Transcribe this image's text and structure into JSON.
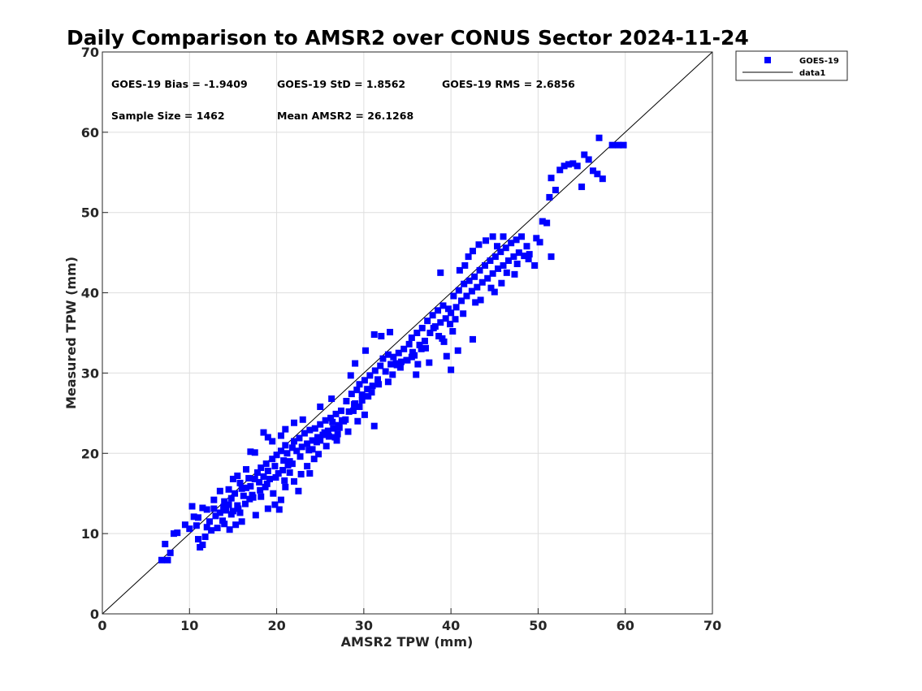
{
  "chart_data": {
    "type": "scatter",
    "title": "Daily Comparison to AMSR2 over CONUS Sector 2024-11-24",
    "xlabel": "AMSR2 TPW (mm)",
    "ylabel": "Measured TPW (mm)",
    "xlim": [
      0,
      70
    ],
    "ylim": [
      0,
      70
    ],
    "xticks": [
      0,
      10,
      20,
      30,
      40,
      50,
      60,
      70
    ],
    "yticks": [
      0,
      10,
      20,
      30,
      40,
      50,
      60,
      70
    ],
    "grid": true,
    "legend_position": "outside-top-right",
    "stats": [
      "GOES-19 Bias = -1.9409",
      "GOES-19 StD = 1.8562",
      "GOES-19 RMS = 2.6856",
      "Sample Size = 1462",
      "Mean AMSR2 = 26.1268"
    ],
    "marker_color": "#0000ff",
    "line_color": "#000000",
    "series": [
      {
        "name": "GOES-19",
        "kind": "scatter",
        "points": [
          [
            6.8,
            6.7
          ],
          [
            7.5,
            6.7
          ],
          [
            7.2,
            8.7
          ],
          [
            7.8,
            7.6
          ],
          [
            8.2,
            10.0
          ],
          [
            8.6,
            10.1
          ],
          [
            9.5,
            11.1
          ],
          [
            10.0,
            10.6
          ],
          [
            10.3,
            13.4
          ],
          [
            10.5,
            12.1
          ],
          [
            10.8,
            11.0
          ],
          [
            11.0,
            9.3
          ],
          [
            11.2,
            8.3
          ],
          [
            11.5,
            8.6
          ],
          [
            11.8,
            9.6
          ],
          [
            12.0,
            10.8
          ],
          [
            12.3,
            11.5
          ],
          [
            12.5,
            10.4
          ],
          [
            12.8,
            13.1
          ],
          [
            13.0,
            12.2
          ],
          [
            13.2,
            10.7
          ],
          [
            13.5,
            12.6
          ],
          [
            13.8,
            11.6
          ],
          [
            14.0,
            14.0
          ],
          [
            14.2,
            12.9
          ],
          [
            14.5,
            13.6
          ],
          [
            14.8,
            14.4
          ],
          [
            15.0,
            12.8
          ],
          [
            15.2,
            15.0
          ],
          [
            15.5,
            13.5
          ],
          [
            15.8,
            16.3
          ],
          [
            16.0,
            15.6
          ],
          [
            16.2,
            14.7
          ],
          [
            16.5,
            15.7
          ],
          [
            16.8,
            16.9
          ],
          [
            17.0,
            15.9
          ],
          [
            17.2,
            14.8
          ],
          [
            17.5,
            16.8
          ],
          [
            17.8,
            17.6
          ],
          [
            18.0,
            16.4
          ],
          [
            18.2,
            18.2
          ],
          [
            18.5,
            17.1
          ],
          [
            18.8,
            18.7
          ],
          [
            19.0,
            17.8
          ],
          [
            19.2,
            16.8
          ],
          [
            19.5,
            19.3
          ],
          [
            19.8,
            18.4
          ],
          [
            20.0,
            19.8
          ],
          [
            20.2,
            17.5
          ],
          [
            20.5,
            20.3
          ],
          [
            20.8,
            19.1
          ],
          [
            21.0,
            21.0
          ],
          [
            21.2,
            20.0
          ],
          [
            21.5,
            19.0
          ],
          [
            21.8,
            20.7
          ],
          [
            22.0,
            21.5
          ],
          [
            22.3,
            20.3
          ],
          [
            22.6,
            21.9
          ],
          [
            22.9,
            20.8
          ],
          [
            23.2,
            22.5
          ],
          [
            23.5,
            21.2
          ],
          [
            23.8,
            22.9
          ],
          [
            24.1,
            21.6
          ],
          [
            24.4,
            23.1
          ],
          [
            24.7,
            22.0
          ],
          [
            25.0,
            23.6
          ],
          [
            25.3,
            22.3
          ],
          [
            25.6,
            24.1
          ],
          [
            25.9,
            22.8
          ],
          [
            26.2,
            24.4
          ],
          [
            26.5,
            23.1
          ],
          [
            26.8,
            24.9
          ],
          [
            27.1,
            23.5
          ],
          [
            27.4,
            25.3
          ],
          [
            27.7,
            24.0
          ],
          [
            28.0,
            26.5
          ],
          [
            28.3,
            25.2
          ],
          [
            28.6,
            27.4
          ],
          [
            28.9,
            26.1
          ],
          [
            29.2,
            27.9
          ],
          [
            29.5,
            28.6
          ],
          [
            29.8,
            27.3
          ],
          [
            30.1,
            29.1
          ],
          [
            30.4,
            28.0
          ],
          [
            30.7,
            29.7
          ],
          [
            31.0,
            28.4
          ],
          [
            31.3,
            30.3
          ],
          [
            31.6,
            29.2
          ],
          [
            31.9,
            30.9
          ],
          [
            32.2,
            31.8
          ],
          [
            32.5,
            30.2
          ],
          [
            32.8,
            32.3
          ],
          [
            33.1,
            31.1
          ],
          [
            33.4,
            32.0
          ],
          [
            33.7,
            31.2
          ],
          [
            34.0,
            32.5
          ],
          [
            34.3,
            31.4
          ],
          [
            34.6,
            33.0
          ],
          [
            34.9,
            31.6
          ],
          [
            35.2,
            33.6
          ],
          [
            35.5,
            34.4
          ],
          [
            35.8,
            32.2
          ],
          [
            36.1,
            35.0
          ],
          [
            36.4,
            33.5
          ],
          [
            36.7,
            35.6
          ],
          [
            37.0,
            34.0
          ],
          [
            37.3,
            36.5
          ],
          [
            37.6,
            35.0
          ],
          [
            37.9,
            37.2
          ],
          [
            38.2,
            35.8
          ],
          [
            38.5,
            37.8
          ],
          [
            38.8,
            36.3
          ],
          [
            39.1,
            38.4
          ],
          [
            39.4,
            36.8
          ],
          [
            39.7,
            38.0
          ],
          [
            40.0,
            37.5
          ],
          [
            40.3,
            39.6
          ],
          [
            40.6,
            38.2
          ],
          [
            40.9,
            40.3
          ],
          [
            41.2,
            39.0
          ],
          [
            41.5,
            41.1
          ],
          [
            41.8,
            39.6
          ],
          [
            42.1,
            41.5
          ],
          [
            42.4,
            40.2
          ],
          [
            42.7,
            42.0
          ],
          [
            43.0,
            40.7
          ],
          [
            43.3,
            42.8
          ],
          [
            43.6,
            41.3
          ],
          [
            43.9,
            43.4
          ],
          [
            44.2,
            41.8
          ],
          [
            44.5,
            44.0
          ],
          [
            44.8,
            42.4
          ],
          [
            45.1,
            44.5
          ],
          [
            45.4,
            43.0
          ],
          [
            45.7,
            45.1
          ],
          [
            46.0,
            43.4
          ],
          [
            46.3,
            45.6
          ],
          [
            46.6,
            44.0
          ],
          [
            46.9,
            46.2
          ],
          [
            47.2,
            44.5
          ],
          [
            47.5,
            46.6
          ],
          [
            47.8,
            45.0
          ],
          [
            48.1,
            47.0
          ],
          [
            48.4,
            44.6
          ],
          [
            48.7,
            45.8
          ],
          [
            49.0,
            44.8
          ],
          [
            49.6,
            43.4
          ],
          [
            49.8,
            46.8
          ],
          [
            50.2,
            46.3
          ],
          [
            50.5,
            48.9
          ],
          [
            51.0,
            48.7
          ],
          [
            51.5,
            44.5
          ],
          [
            51.3,
            51.9
          ],
          [
            51.5,
            54.3
          ],
          [
            52.0,
            52.8
          ],
          [
            52.5,
            55.3
          ],
          [
            53.0,
            55.8
          ],
          [
            53.5,
            56.0
          ],
          [
            54.0,
            56.1
          ],
          [
            54.5,
            55.8
          ],
          [
            55.0,
            53.2
          ],
          [
            55.3,
            57.2
          ],
          [
            55.8,
            56.6
          ],
          [
            56.3,
            55.2
          ],
          [
            56.8,
            54.8
          ],
          [
            57.4,
            54.2
          ],
          [
            57.0,
            59.3
          ],
          [
            58.5,
            58.4
          ],
          [
            59.2,
            58.4
          ],
          [
            59.8,
            58.4
          ],
          [
            42.0,
            44.5
          ],
          [
            42.5,
            45.2
          ],
          [
            43.2,
            46.0
          ],
          [
            44.0,
            46.5
          ],
          [
            44.8,
            47.0
          ],
          [
            45.3,
            45.8
          ],
          [
            46.0,
            47.0
          ],
          [
            38.8,
            42.5
          ],
          [
            41.0,
            42.8
          ],
          [
            41.6,
            43.4
          ],
          [
            33.0,
            35.1
          ],
          [
            32.0,
            34.6
          ],
          [
            31.2,
            34.8
          ],
          [
            30.2,
            32.8
          ],
          [
            29.0,
            31.2
          ],
          [
            28.5,
            29.7
          ],
          [
            26.3,
            26.8
          ],
          [
            25.0,
            25.8
          ],
          [
            23.0,
            24.2
          ],
          [
            22.0,
            23.8
          ],
          [
            21.0,
            23.0
          ],
          [
            20.5,
            22.2
          ],
          [
            19.5,
            21.5
          ],
          [
            19.0,
            22.0
          ],
          [
            18.5,
            22.6
          ],
          [
            17.5,
            20.1
          ],
          [
            17.0,
            20.2
          ],
          [
            16.5,
            18.0
          ],
          [
            15.5,
            17.2
          ],
          [
            15.0,
            16.8
          ],
          [
            14.5,
            15.5
          ],
          [
            13.5,
            15.3
          ],
          [
            12.8,
            14.2
          ],
          [
            12.0,
            13.0
          ],
          [
            11.5,
            13.2
          ],
          [
            11.0,
            12.0
          ],
          [
            31.2,
            23.4
          ],
          [
            40.0,
            30.4
          ],
          [
            39.5,
            32.1
          ],
          [
            40.8,
            32.8
          ],
          [
            42.5,
            34.2
          ],
          [
            37.5,
            31.3
          ],
          [
            36.2,
            31.1
          ],
          [
            35.0,
            31.6
          ],
          [
            33.8,
            31.0
          ],
          [
            32.8,
            28.9
          ],
          [
            30.5,
            27.1
          ],
          [
            29.0,
            26.2
          ],
          [
            27.0,
            22.4
          ],
          [
            26.0,
            22.1
          ],
          [
            25.0,
            21.6
          ],
          [
            24.1,
            20.5
          ],
          [
            23.5,
            18.4
          ],
          [
            22.8,
            17.4
          ],
          [
            22.0,
            16.5
          ],
          [
            21.0,
            15.8
          ],
          [
            20.5,
            14.2
          ],
          [
            19.8,
            13.6
          ],
          [
            19.0,
            13.1
          ],
          [
            18.2,
            14.6
          ],
          [
            17.6,
            12.3
          ],
          [
            16.0,
            11.5
          ],
          [
            15.3,
            11.1
          ],
          [
            14.6,
            10.5
          ],
          [
            14.0,
            11.2
          ],
          [
            22.5,
            15.3
          ],
          [
            23.8,
            17.5
          ],
          [
            26.7,
            22.0
          ],
          [
            29.5,
            25.8
          ],
          [
            36.0,
            29.8
          ],
          [
            20.3,
            13.0
          ],
          [
            21.5,
            17.6
          ],
          [
            18.7,
            15.8
          ],
          [
            16.9,
            14.3
          ],
          [
            13.9,
            13.3
          ],
          [
            24.8,
            19.9
          ],
          [
            27.5,
            24.1
          ],
          [
            21.3,
            18.5
          ],
          [
            20.9,
            16.6
          ],
          [
            19.6,
            15.0
          ],
          [
            15.8,
            12.6
          ],
          [
            38.0,
            35.6
          ],
          [
            39.2,
            33.9
          ],
          [
            40.5,
            36.7
          ],
          [
            43.4,
            39.1
          ],
          [
            44.6,
            40.6
          ],
          [
            45.8,
            41.2
          ],
          [
            47.3,
            42.3
          ],
          [
            48.9,
            44.2
          ],
          [
            47.6,
            43.6
          ],
          [
            46.4,
            42.5
          ],
          [
            45.0,
            40.1
          ],
          [
            42.8,
            38.8
          ],
          [
            41.4,
            37.4
          ],
          [
            39.9,
            36.1
          ],
          [
            38.6,
            34.6
          ],
          [
            37.1,
            33.1
          ],
          [
            35.6,
            32.6
          ],
          [
            34.2,
            30.7
          ],
          [
            33.3,
            29.8
          ],
          [
            31.7,
            28.6
          ],
          [
            30.9,
            27.6
          ],
          [
            29.8,
            26.6
          ],
          [
            28.8,
            25.3
          ],
          [
            27.9,
            24.2
          ],
          [
            27.2,
            23.2
          ],
          [
            26.4,
            23.9
          ],
          [
            25.5,
            22.6
          ],
          [
            24.6,
            21.4
          ],
          [
            23.7,
            20.4
          ],
          [
            22.7,
            19.6
          ],
          [
            21.8,
            18.7
          ],
          [
            20.7,
            17.9
          ],
          [
            19.9,
            17.0
          ],
          [
            18.9,
            16.2
          ],
          [
            18.1,
            15.4
          ],
          [
            17.3,
            14.5
          ],
          [
            16.4,
            13.7
          ],
          [
            15.6,
            13.1
          ],
          [
            14.8,
            12.4
          ],
          [
            24.3,
            19.3
          ],
          [
            25.7,
            20.9
          ],
          [
            26.9,
            21.6
          ],
          [
            28.2,
            22.7
          ],
          [
            29.3,
            24.0
          ],
          [
            30.1,
            24.8
          ],
          [
            35.5,
            32.0
          ],
          [
            36.6,
            33.0
          ],
          [
            39.0,
            34.3
          ],
          [
            40.2,
            35.2
          ]
        ]
      },
      {
        "name": "data1",
        "kind": "line",
        "x": [
          0,
          70
        ],
        "y": [
          0,
          70
        ]
      }
    ]
  }
}
